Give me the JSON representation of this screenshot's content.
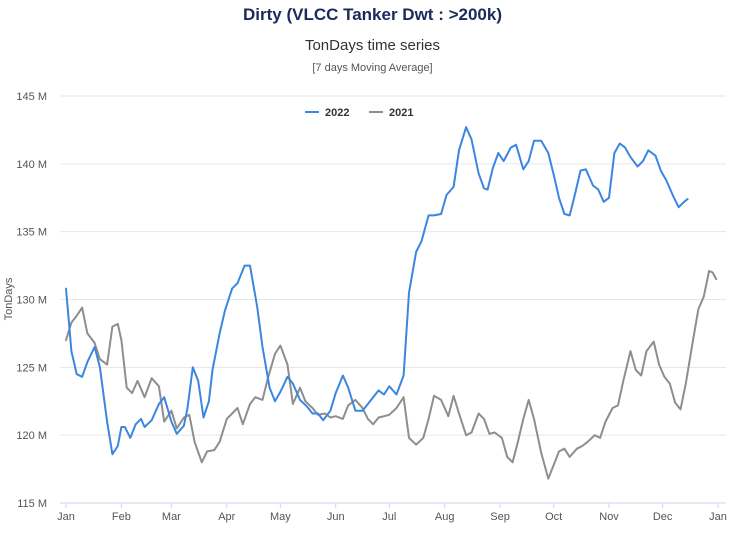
{
  "chart_data": {
    "type": "line",
    "title": "Dirty (VLCC Tanker Dwt : >200k)",
    "subtitle": "TonDays time series",
    "note": "[7 days Moving Average]",
    "ylabel": "TonDays",
    "xlabel": "",
    "ylim": [
      115,
      145
    ],
    "y_ticks": [
      115,
      120,
      125,
      130,
      135,
      140,
      145
    ],
    "y_tick_labels": [
      "115 M",
      "120 M",
      "125 M",
      "130 M",
      "135 M",
      "140 M",
      "145 M"
    ],
    "x_ticks": [
      0,
      31,
      59,
      90,
      120,
      151,
      181,
      212,
      243,
      273,
      304,
      334,
      365
    ],
    "x_tick_labels": [
      "Jan",
      "Feb",
      "Mar",
      "Apr",
      "May",
      "Jun",
      "Jul",
      "Aug",
      "Sep",
      "Oct",
      "Nov",
      "Dec",
      "Jan"
    ],
    "xlim": [
      0,
      365
    ],
    "legend_position": "top-center",
    "grid": true,
    "series": [
      {
        "name": "2022",
        "color": "#3b86e0",
        "x": [
          0,
          3,
          6,
          9,
          12,
          16,
          19,
          23,
          26,
          29,
          31,
          33,
          36,
          39,
          42,
          44,
          48,
          52,
          55,
          59,
          62,
          66,
          68,
          71,
          74,
          77,
          80,
          82,
          86,
          89,
          93,
          96,
          100,
          103,
          107,
          110,
          114,
          117,
          120,
          124,
          127,
          131,
          135,
          138,
          141,
          144,
          148,
          151,
          155,
          158,
          162,
          166,
          169,
          172,
          175,
          178,
          181,
          185,
          189,
          192,
          196,
          199,
          203,
          206,
          210,
          213,
          217,
          220,
          224,
          227,
          231,
          234,
          236,
          239,
          242,
          245,
          249,
          252,
          256,
          259,
          262,
          266,
          270,
          273,
          276,
          279,
          282,
          285,
          288,
          291,
          295,
          298,
          301,
          304,
          307,
          310,
          313,
          316,
          320,
          323,
          326,
          330,
          333,
          336,
          340,
          343,
          346,
          348
        ],
        "values": [
          130.8,
          126.2,
          124.5,
          124.3,
          125.4,
          126.5,
          125.0,
          121.0,
          118.6,
          119.2,
          120.6,
          120.6,
          119.8,
          120.8,
          121.2,
          120.6,
          121.1,
          122.3,
          122.8,
          121.0,
          120.1,
          120.7,
          122.0,
          125.0,
          124.0,
          121.3,
          122.5,
          124.8,
          127.5,
          129.2,
          130.8,
          131.2,
          132.5,
          132.5,
          129.5,
          126.5,
          123.5,
          122.5,
          123.2,
          124.3,
          123.8,
          122.6,
          122.1,
          121.6,
          121.6,
          121.1,
          121.8,
          123.1,
          124.4,
          123.5,
          121.8,
          121.8,
          122.3,
          122.8,
          123.3,
          123.0,
          123.6,
          123.0,
          124.4,
          130.5,
          133.5,
          134.3,
          136.2,
          136.2,
          136.3,
          137.7,
          138.3,
          141.0,
          142.7,
          141.8,
          139.3,
          138.2,
          138.1,
          139.7,
          140.8,
          140.2,
          141.2,
          141.4,
          139.6,
          140.2,
          141.7,
          141.7,
          140.8,
          139.2,
          137.5,
          136.3,
          136.2,
          137.8,
          139.5,
          139.6,
          138.4,
          138.1,
          137.2,
          137.5,
          140.8,
          141.5,
          141.2,
          140.5,
          139.8,
          140.2,
          141.0,
          140.6,
          139.5,
          138.8,
          137.6,
          136.8,
          137.2,
          137.4
        ]
      },
      {
        "name": "2021",
        "color": "#8e8e8e",
        "x": [
          0,
          3,
          6,
          9,
          12,
          16,
          19,
          23,
          26,
          29,
          31,
          34,
          37,
          40,
          44,
          48,
          52,
          55,
          59,
          62,
          66,
          69,
          72,
          76,
          79,
          83,
          86,
          90,
          93,
          96,
          99,
          103,
          106,
          110,
          113,
          117,
          120,
          124,
          127,
          131,
          134,
          138,
          141,
          145,
          148,
          151,
          155,
          158,
          162,
          166,
          169,
          172,
          175,
          178,
          181,
          185,
          189,
          192,
          196,
          200,
          203,
          206,
          210,
          214,
          217,
          220,
          224,
          227,
          231,
          234,
          237,
          240,
          244,
          247,
          250,
          253,
          256,
          259,
          262,
          266,
          270,
          273,
          276,
          279,
          282,
          286,
          289,
          292,
          296,
          299,
          302,
          306,
          309,
          312,
          316,
          319,
          322,
          325,
          329,
          332,
          335,
          338,
          341,
          344,
          347,
          351,
          354,
          357,
          360,
          362,
          364
        ],
        "values": [
          127.0,
          128.3,
          128.8,
          129.4,
          127.5,
          126.8,
          125.6,
          125.2,
          128.0,
          128.2,
          127.0,
          123.5,
          123.1,
          124.0,
          122.8,
          124.2,
          123.6,
          121.0,
          121.8,
          120.5,
          121.3,
          121.5,
          119.5,
          118.0,
          118.8,
          118.9,
          119.5,
          121.2,
          121.6,
          122.0,
          120.8,
          122.3,
          122.8,
          122.6,
          124.2,
          126.0,
          126.6,
          125.2,
          122.3,
          123.5,
          122.5,
          122.0,
          121.5,
          121.6,
          121.3,
          121.4,
          121.2,
          122.2,
          122.6,
          122.0,
          121.2,
          120.8,
          121.3,
          121.4,
          121.5,
          122.0,
          122.8,
          119.8,
          119.3,
          119.8,
          121.2,
          122.9,
          122.6,
          121.4,
          122.9,
          121.6,
          120.0,
          120.2,
          121.6,
          121.2,
          120.1,
          120.2,
          119.8,
          118.4,
          118.0,
          119.5,
          121.2,
          122.6,
          121.2,
          118.7,
          116.8,
          117.8,
          118.8,
          119.0,
          118.4,
          119.0,
          119.2,
          119.5,
          120.0,
          119.8,
          121.0,
          122.0,
          122.2,
          124.0,
          126.2,
          124.8,
          124.4,
          126.2,
          126.9,
          125.2,
          124.3,
          123.8,
          122.4,
          121.9,
          123.8,
          127.0,
          129.3,
          130.2,
          132.1,
          132.0,
          131.5
        ]
      }
    ]
  }
}
